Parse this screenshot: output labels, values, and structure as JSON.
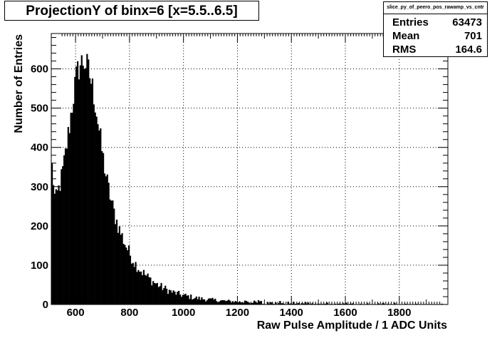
{
  "title": "ProjectionY of binx=6 [x=5.5..6.5]",
  "stats": {
    "name": "slice_py_of_peero_pos_rawamp_vs_cntr",
    "rows": [
      {
        "label": "Entries",
        "value": "63473"
      },
      {
        "label": "Mean",
        "value": "701"
      },
      {
        "label": "RMS",
        "value": "164.6"
      }
    ]
  },
  "chart_data": {
    "type": "bar",
    "title": "ProjectionY of binx=6 [x=5.5..6.5]",
    "xlabel": "Raw Pulse Amplitude / 1 ADC Units",
    "ylabel": "Number of Entries",
    "xlim": [
      510,
      1980
    ],
    "ylim": [
      0,
      690
    ],
    "grid": true,
    "bin_width": 5,
    "x_ticks": [
      600,
      800,
      1000,
      1200,
      1400,
      1600,
      1800
    ],
    "x_tick_labels": [
      "600",
      "800",
      "1000",
      "1200",
      "1400",
      "1600",
      "1800"
    ],
    "y_ticks": [
      0,
      100,
      200,
      300,
      400,
      500,
      600
    ],
    "y_tick_labels": [
      "0",
      "100",
      "200",
      "300",
      "400",
      "500",
      "600"
    ],
    "envelope_x": [
      510,
      515,
      520,
      525,
      530,
      540,
      550,
      560,
      570,
      580,
      590,
      600,
      610,
      620,
      630,
      640,
      650,
      660,
      670,
      680,
      690,
      700,
      720,
      740,
      760,
      780,
      800,
      820,
      840,
      860,
      880,
      900,
      920,
      940,
      960,
      980,
      1000,
      1050,
      1100,
      1150,
      1200,
      1250,
      1300,
      1400,
      1500,
      1600,
      1700,
      1800,
      1900,
      1980
    ],
    "envelope_y": [
      360,
      340,
      290,
      260,
      275,
      300,
      330,
      370,
      420,
      470,
      520,
      570,
      600,
      615,
      620,
      610,
      590,
      560,
      525,
      480,
      430,
      380,
      300,
      240,
      195,
      160,
      130,
      105,
      88,
      74,
      62,
      52,
      44,
      37,
      31,
      27,
      23,
      16,
      12,
      9,
      7,
      5,
      4,
      3,
      2.5,
      2,
      1.5,
      1.2,
      1,
      1
    ]
  }
}
